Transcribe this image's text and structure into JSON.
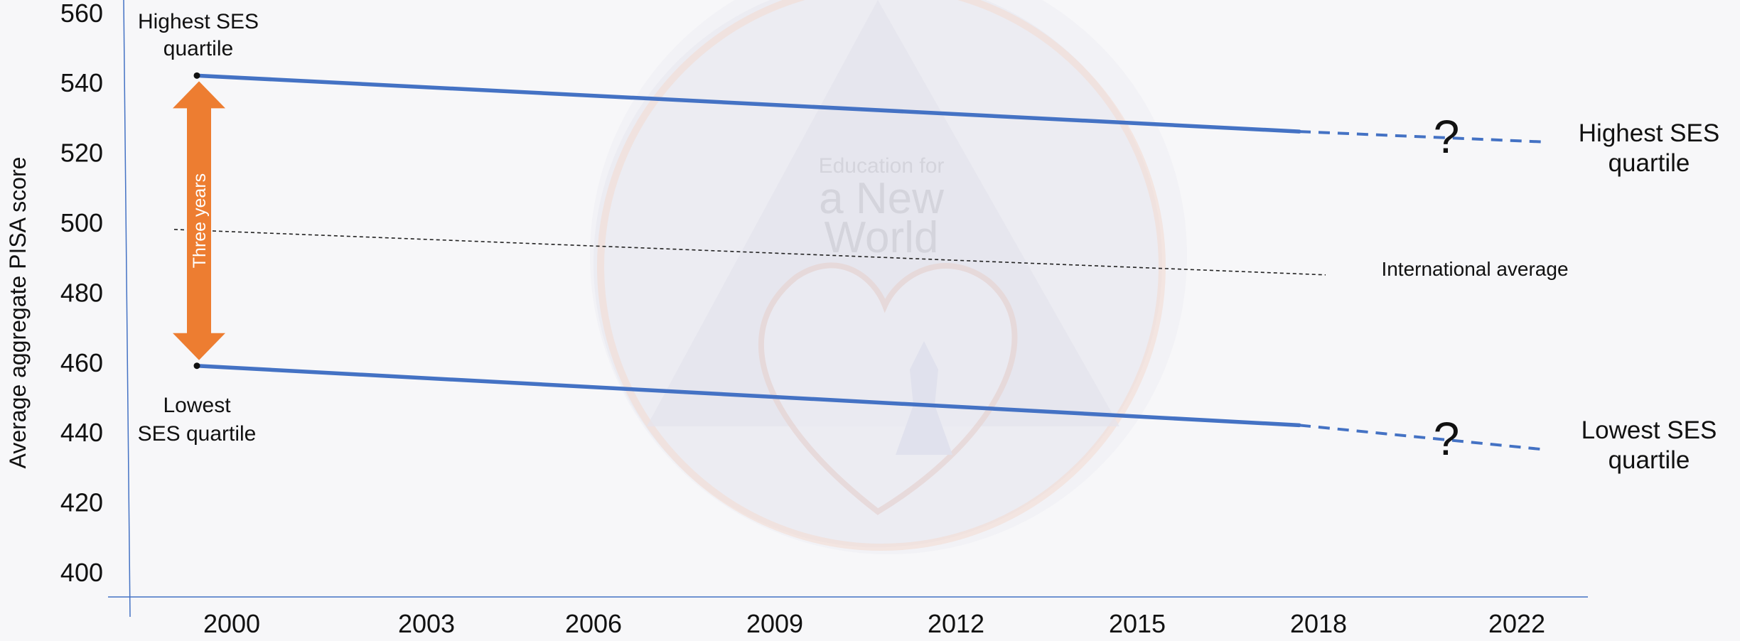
{
  "watermark": {
    "line1": "Education for",
    "line2": "a New",
    "line3": "World"
  },
  "chart_data": {
    "type": "line",
    "ylabel": "Average aggregate PISA score",
    "xlabel": "",
    "categories": [
      "2000",
      "2003",
      "2006",
      "2009",
      "2012",
      "2015",
      "2018",
      "2022"
    ],
    "ylim": [
      400,
      560
    ],
    "yticks": [
      400,
      420,
      440,
      460,
      480,
      500,
      520,
      540,
      560
    ],
    "grid": false,
    "series": [
      {
        "name": "Highest SES quartile",
        "color": "#4472C4",
        "solid": [
          [
            "2000",
            542
          ],
          [
            "2018",
            526
          ]
        ],
        "projected": [
          [
            "2018",
            526
          ],
          [
            "2022",
            523
          ]
        ]
      },
      {
        "name": "Lowest SES quartile",
        "color": "#4472C4",
        "solid": [
          [
            "2000",
            459
          ],
          [
            "2018",
            442
          ]
        ],
        "projected": [
          [
            "2018",
            442
          ],
          [
            "2022",
            435
          ]
        ]
      },
      {
        "name": "International average",
        "color": "#222222",
        "dotted": [
          [
            "2000",
            498
          ],
          [
            "2018",
            485
          ]
        ]
      }
    ],
    "annotations": {
      "high_start_line1": "Highest SES",
      "high_start_line2": "quartile",
      "low_start_line1": "Lowest",
      "low_start_line2": "SES quartile",
      "high_end_line1": "Highest SES",
      "high_end_line2": "quartile",
      "low_end_line1": "Lowest SES",
      "low_end_line2": "quartile",
      "intl_average": "International average",
      "question_mark": "?",
      "gap_label": "Three years",
      "gap_color": "#ED7D31"
    }
  }
}
